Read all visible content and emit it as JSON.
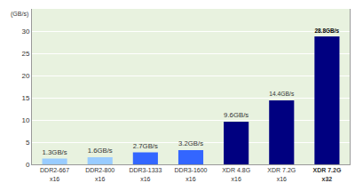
{
  "chart_data": {
    "type": "bar",
    "ylabel": "(GB/s)",
    "categories": [
      "DDR2-667\nx16",
      "DDR2-800\nx16",
      "DDR3-1333\nx16",
      "DDR3-1600\nx16",
      "XDR 4.8G\nx16",
      "XDR 7.2G\nx16",
      "XDR 7.2G\nx32"
    ],
    "values": [
      1.3,
      1.6,
      2.7,
      3.2,
      9.6,
      14.4,
      28.8
    ],
    "value_labels": [
      "1.3GB/s",
      "1.6GB/s",
      "2.7GB/s",
      "3.2GB/s",
      "9.6GB/s",
      "14.4GB/s",
      "28.8GB/s"
    ],
    "colors": [
      "#99ccff",
      "#99ccff",
      "#3366ff",
      "#3366ff",
      "#000080",
      "#000080",
      "#000080"
    ],
    "data_labels": true,
    "ylim": [
      0,
      35
    ],
    "yticks": [
      0,
      5,
      10,
      15,
      20,
      25,
      30
    ],
    "grid": true
  }
}
